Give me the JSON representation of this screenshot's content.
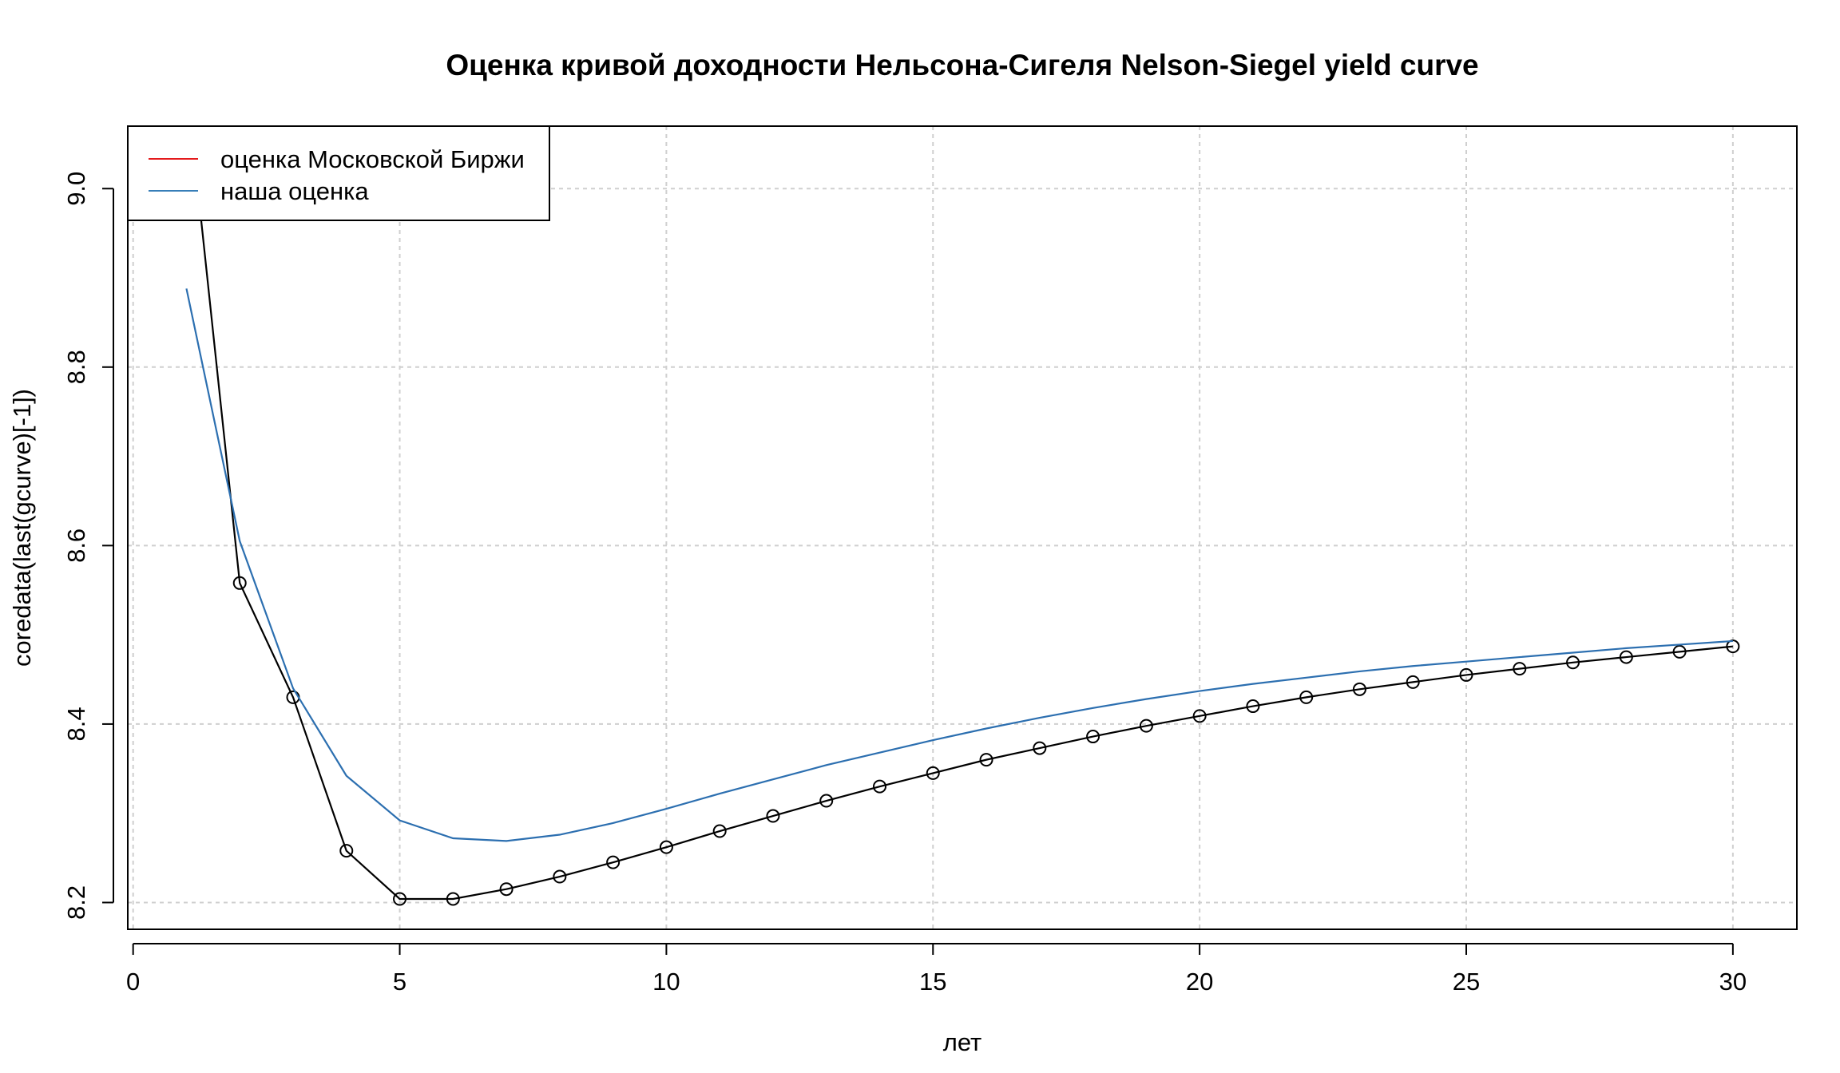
{
  "chart_data": {
    "type": "line",
    "title": "Оценка кривой доходности Нельсона-Сигеля Nelson-Siegel yield curve",
    "xlabel": "лет",
    "ylabel": "coredata(last(gcurve)[-1])",
    "xlim": [
      -0.1,
      31.2
    ],
    "ylim": [
      8.17,
      9.07
    ],
    "xticks": [
      0,
      5,
      10,
      15,
      20,
      25,
      30
    ],
    "yticks": [
      8.2,
      8.4,
      8.6,
      8.8,
      9.0
    ],
    "ytick_labels": [
      "8.2",
      "8.4",
      "8.6",
      "8.8",
      "9.0"
    ],
    "grid": true,
    "legend_position": "top-left",
    "legend": [
      {
        "label": "оценка Московской Биржи",
        "color": "#e41a1c"
      },
      {
        "label": "наша оценка",
        "color": "#377eb8"
      }
    ],
    "series": [
      {
        "color": "#000000",
        "markers": true,
        "x": [
          1,
          2,
          3,
          4,
          5,
          6,
          7,
          8,
          9,
          10,
          11,
          12,
          13,
          14,
          15,
          16,
          17,
          18,
          19,
          20,
          21,
          22,
          23,
          24,
          25,
          26,
          27,
          28,
          29,
          30
        ],
        "values": [
          9.12,
          8.558,
          8.43,
          8.258,
          8.204,
          8.204,
          8.215,
          8.229,
          8.245,
          8.262,
          8.28,
          8.297,
          8.314,
          8.33,
          8.345,
          8.36,
          8.373,
          8.386,
          8.398,
          8.409,
          8.42,
          8.43,
          8.439,
          8.447,
          8.455,
          8.462,
          8.469,
          8.475,
          8.481,
          8.487
        ]
      },
      {
        "color": "#2c6fb0",
        "markers": false,
        "x": [
          1,
          2,
          3,
          4,
          5,
          6,
          7,
          8,
          9,
          10,
          11,
          12,
          13,
          14,
          15,
          16,
          17,
          18,
          19,
          20,
          21,
          22,
          23,
          24,
          25,
          26,
          27,
          28,
          29,
          30
        ],
        "values": [
          8.888,
          8.605,
          8.44,
          8.342,
          8.292,
          8.272,
          8.269,
          8.276,
          8.289,
          8.305,
          8.322,
          8.338,
          8.354,
          8.368,
          8.382,
          8.395,
          8.407,
          8.418,
          8.428,
          8.437,
          8.445,
          8.452,
          8.459,
          8.465,
          8.47,
          8.475,
          8.48,
          8.485,
          8.489,
          8.493
        ]
      }
    ]
  }
}
